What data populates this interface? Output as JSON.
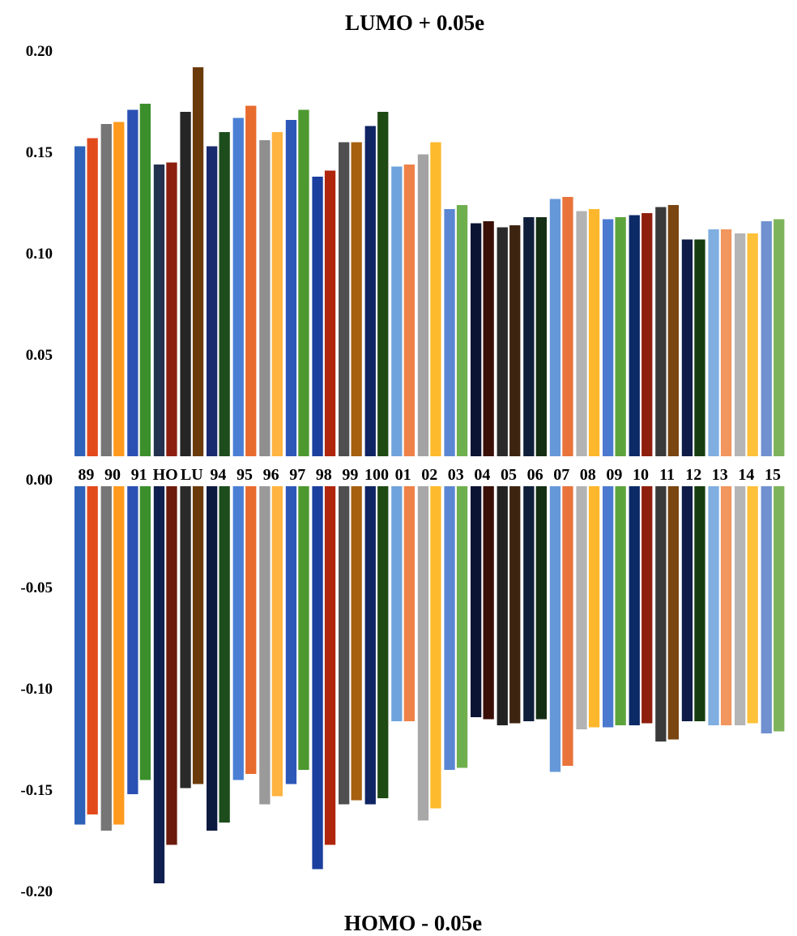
{
  "chart_data": {
    "type": "bar",
    "title": "LUMO + 0.05e",
    "bottom_title": "HOMO - 0.05e",
    "xlabel": "",
    "ylabel": "",
    "ylim": [
      -0.2,
      0.2
    ],
    "yticks": [
      "0.20",
      "0.15",
      "0.10",
      "0.05",
      "0.00",
      "-0.05",
      "-0.10",
      "-0.15",
      "-0.20"
    ],
    "ytick_values": [
      0.2,
      0.15,
      0.1,
      0.05,
      0,
      -0.05,
      -0.1,
      -0.15,
      -0.2
    ],
    "grid": false,
    "legend": "none",
    "categories": [
      "89",
      "90",
      "91",
      "HO",
      "LU",
      "94",
      "95",
      "96",
      "97",
      "98",
      "99",
      "100",
      "01",
      "02",
      "03",
      "04",
      "05",
      "06",
      "07",
      "08",
      "09",
      "10",
      "11",
      "12",
      "13",
      "14",
      "15"
    ],
    "series": [
      {
        "values": [
          0.153,
          0.164,
          0.171,
          0.144,
          0.17,
          0.153,
          0.167,
          0.156,
          0.166,
          0.138,
          0.155,
          0.163,
          0.143,
          0.149,
          0.122,
          0.115,
          0.113,
          0.118,
          0.127,
          0.121,
          0.117,
          0.119,
          0.123,
          0.107,
          0.112,
          0.11,
          0.116
        ],
        "colors": [
          "#2e62b8",
          "#767676",
          "#2b50b4",
          "#23304e",
          "#252525",
          "#1a2a6e",
          "#4a7fd4",
          "#8f8f8f",
          "#2d58b8",
          "#1b3f9e",
          "#4f4f4f",
          "#0e2463",
          "#6fa3dc",
          "#a3a3a3",
          "#5b87d2",
          "#0b1433",
          "#2a2a2a",
          "#0f1f3b",
          "#6598d8",
          "#b3b3b3",
          "#4c7ad0",
          "#0c2a66",
          "#3a3a3a",
          "#0e1c47",
          "#80aee0",
          "#b5b5b5",
          "#7090d0"
        ]
      },
      {
        "values": [
          0.157,
          0.165,
          0.174,
          0.145,
          0.192,
          0.16,
          0.173,
          0.16,
          0.171,
          0.141,
          0.155,
          0.17,
          0.144,
          0.155,
          0.124,
          0.116,
          0.114,
          0.118,
          0.128,
          0.122,
          0.118,
          0.12,
          0.124,
          0.107,
          0.112,
          0.11,
          0.117
        ],
        "colors": [
          "#e24a1c",
          "#ff9a1e",
          "#3a8f2a",
          "#8c1e10",
          "#6b3a0a",
          "#1d4d1d",
          "#e86b2e",
          "#ffb340",
          "#4d9930",
          "#b0260c",
          "#a6600e",
          "#1f4a14",
          "#ee8248",
          "#fdba2c",
          "#6fb04e",
          "#3a0f07",
          "#3d2410",
          "#142e14",
          "#e8743c",
          "#fdb72c",
          "#5da43c",
          "#8e1f0c",
          "#7a4510",
          "#163d0f",
          "#f0965e",
          "#ffc03a",
          "#7db35a"
        ]
      },
      {
        "values": [
          -0.167,
          -0.17,
          -0.152,
          -0.196,
          -0.149,
          -0.17,
          -0.145,
          -0.157,
          -0.147,
          -0.189,
          -0.157,
          -0.157,
          -0.116,
          -0.165,
          -0.14,
          -0.114,
          -0.118,
          -0.116,
          -0.141,
          -0.12,
          -0.119,
          -0.118,
          -0.126,
          -0.116,
          -0.118,
          -0.118,
          -0.122
        ],
        "colors": [
          "#2e62b8",
          "#767676",
          "#2b50b4",
          "#0f1f4f",
          "#2a2a2a",
          "#0d1a40",
          "#4a7fd4",
          "#9a9a9a",
          "#2d58b8",
          "#1b3f9e",
          "#4f4f4f",
          "#0e2463",
          "#6fa3dc",
          "#a8a8a8",
          "#5b87d2",
          "#0b1433",
          "#222222",
          "#0f1f3b",
          "#6598d8",
          "#b3b3b3",
          "#4c7ad0",
          "#0c2a66",
          "#3a3a3a",
          "#0e1c47",
          "#80aee0",
          "#b5b5b5",
          "#7090d0"
        ]
      },
      {
        "values": [
          -0.162,
          -0.167,
          -0.145,
          -0.177,
          -0.147,
          -0.166,
          -0.142,
          -0.153,
          -0.14,
          -0.177,
          -0.155,
          -0.154,
          -0.116,
          -0.159,
          -0.139,
          -0.115,
          -0.117,
          -0.115,
          -0.138,
          -0.119,
          -0.118,
          -0.117,
          -0.125,
          -0.116,
          -0.118,
          -0.117,
          -0.121
        ],
        "colors": [
          "#e24a1c",
          "#ff9a1e",
          "#3a8f2a",
          "#6b1a0c",
          "#6b3a0a",
          "#1d4d1d",
          "#e86b2e",
          "#ffb340",
          "#4d9930",
          "#b0260c",
          "#a6600e",
          "#1f4a14",
          "#ee8248",
          "#fdba2c",
          "#6fb04e",
          "#3a0f07",
          "#3d2410",
          "#142e14",
          "#e8743c",
          "#fdb72c",
          "#5da43c",
          "#8e1f0c",
          "#7a4510",
          "#163d0f",
          "#f0965e",
          "#ffc03a",
          "#7db35a"
        ]
      }
    ]
  }
}
